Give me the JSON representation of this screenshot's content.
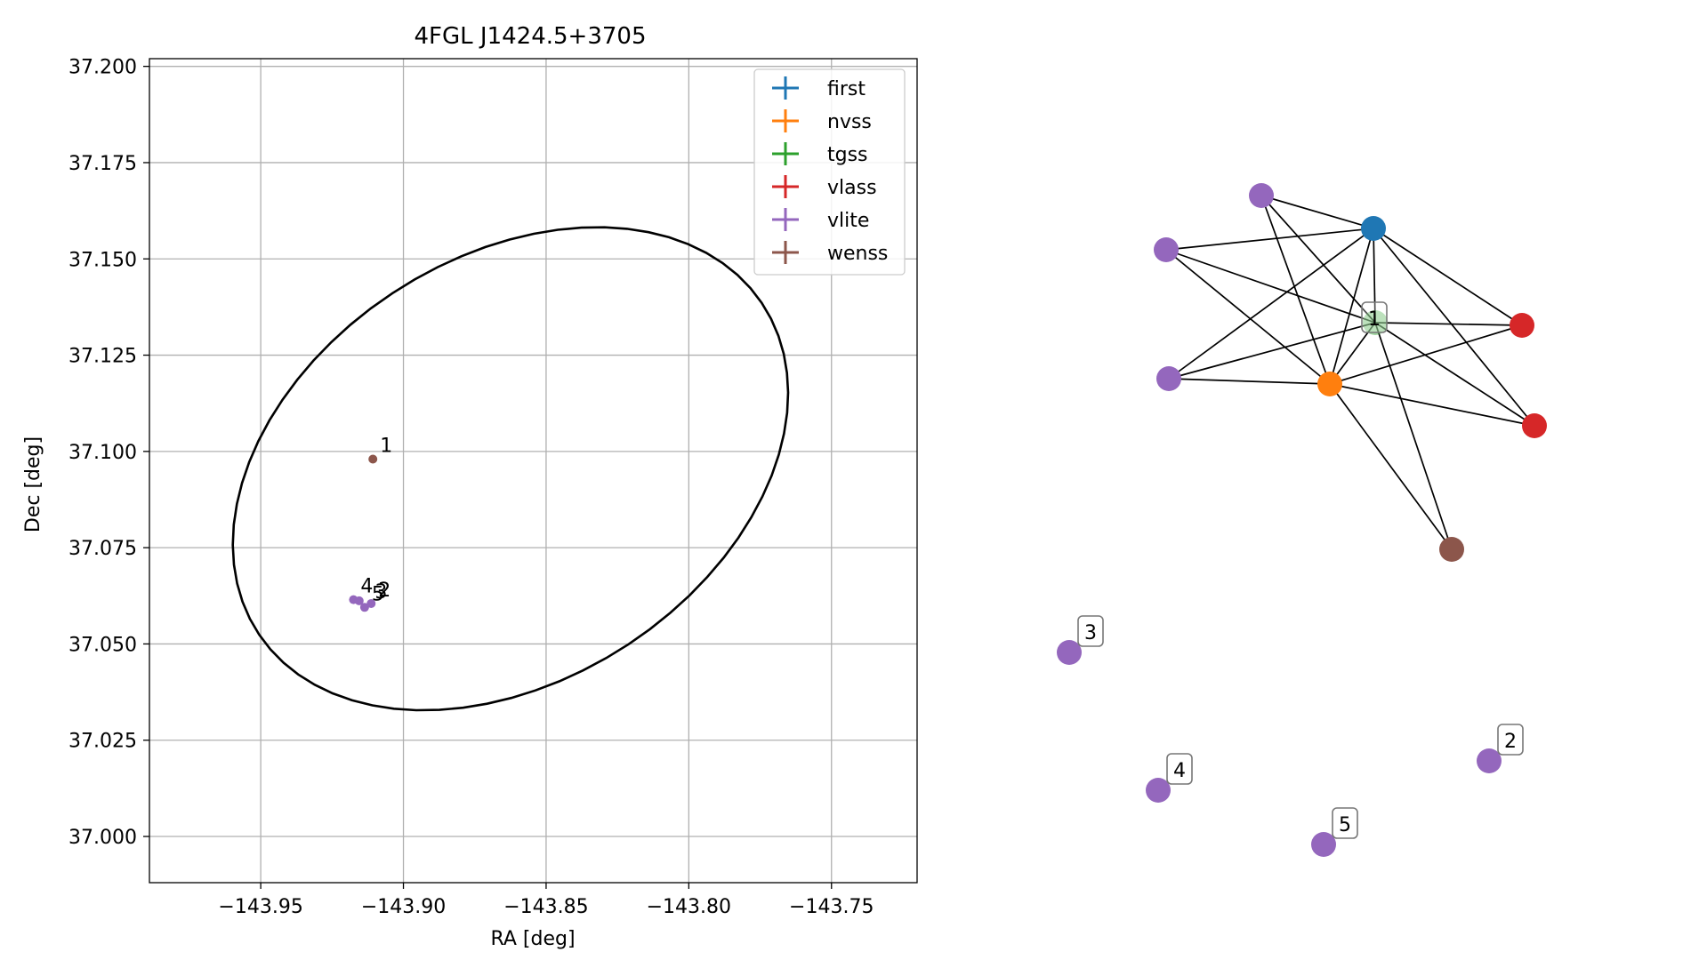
{
  "chart_data": [
    {
      "type": "scatter",
      "title": "4FGL J1424.5+3705",
      "xlabel": "RA [deg]",
      "ylabel": "Dec [deg]",
      "xlim": [
        -143.989,
        -143.72
      ],
      "ylim": [
        36.988,
        37.202
      ],
      "xticks": [
        -143.95,
        -143.9,
        -143.85,
        -143.8,
        -143.75
      ],
      "xtick_labels": [
        "−143.95",
        "−143.90",
        "−143.85",
        "−143.80",
        "−143.75"
      ],
      "yticks": [
        37.0,
        37.025,
        37.05,
        37.075,
        37.1,
        37.125,
        37.15,
        37.175,
        37.2
      ],
      "ytick_labels": [
        "37.000",
        "37.025",
        "37.050",
        "37.075",
        "37.100",
        "37.125",
        "37.150",
        "37.175",
        "37.200"
      ],
      "grid": true,
      "legend_position": "top-right",
      "ellipse": {
        "center": [
          -143.8625,
          37.0955
        ],
        "semi_axis_ra": 0.1003,
        "semi_axis_dec": 0.0578,
        "angle_deg": 17.3,
        "color": "#000000"
      },
      "series": [
        {
          "name": "first",
          "color": "#1f77b4",
          "points": []
        },
        {
          "name": "nvss",
          "color": "#ff7f0e",
          "points": []
        },
        {
          "name": "tgss",
          "color": "#2ca02c",
          "points": []
        },
        {
          "name": "vlass",
          "color": "#d62728",
          "points": []
        },
        {
          "name": "vlite",
          "color": "#9467bd",
          "points": [
            [
              -143.9175,
              37.0615
            ],
            [
              -143.9155,
              37.0612
            ],
            [
              -143.9136,
              37.0595
            ],
            [
              -143.9113,
              37.0605
            ]
          ]
        },
        {
          "name": "wenss",
          "color": "#8c564b",
          "points": [
            [
              -143.9107,
              37.098
            ]
          ]
        }
      ],
      "annotations": [
        {
          "text": "1",
          "x": -143.9107,
          "y": 37.098
        },
        {
          "text": "4",
          "x": -143.9175,
          "y": 37.0615
        },
        {
          "text": "5",
          "x": -143.9136,
          "y": 37.0595
        },
        {
          "text": "3",
          "x": -143.9125,
          "y": 37.06
        },
        {
          "text": "2",
          "x": -143.9113,
          "y": 37.0605
        }
      ]
    },
    {
      "type": "graph",
      "nodes": [
        {
          "id": "first",
          "color": "#1f77b4"
        },
        {
          "id": "nvss",
          "color": "#ff7f0e"
        },
        {
          "id": "tgss",
          "color": "#2ca02c",
          "label": "1"
        },
        {
          "id": "vlass_a",
          "color": "#d62728"
        },
        {
          "id": "vlass_b",
          "color": "#d62728"
        },
        {
          "id": "vlite_a",
          "color": "#9467bd"
        },
        {
          "id": "vlite_b",
          "color": "#9467bd"
        },
        {
          "id": "vlite_c",
          "color": "#9467bd"
        },
        {
          "id": "wenss",
          "color": "#8c564b"
        },
        {
          "id": "iso_3",
          "color": "#9467bd",
          "label": "3"
        },
        {
          "id": "iso_4",
          "color": "#9467bd",
          "label": "4"
        },
        {
          "id": "iso_5",
          "color": "#9467bd",
          "label": "5"
        },
        {
          "id": "iso_2",
          "color": "#9467bd",
          "label": "2"
        }
      ],
      "edges": [
        [
          "vlite_a",
          "first"
        ],
        [
          "vlite_a",
          "nvss"
        ],
        [
          "vlite_a",
          "tgss"
        ],
        [
          "vlite_b",
          "first"
        ],
        [
          "vlite_b",
          "tgss"
        ],
        [
          "vlite_b",
          "nvss"
        ],
        [
          "vlite_c",
          "first"
        ],
        [
          "vlite_c",
          "tgss"
        ],
        [
          "vlite_c",
          "nvss"
        ],
        [
          "first",
          "tgss"
        ],
        [
          "first",
          "nvss"
        ],
        [
          "first",
          "vlass_a"
        ],
        [
          "first",
          "vlass_b"
        ],
        [
          "tgss",
          "nvss"
        ],
        [
          "tgss",
          "vlass_a"
        ],
        [
          "tgss",
          "vlass_b"
        ],
        [
          "tgss",
          "wenss"
        ],
        [
          "nvss",
          "vlass_a"
        ],
        [
          "nvss",
          "vlass_b"
        ],
        [
          "nvss",
          "wenss"
        ]
      ]
    }
  ]
}
